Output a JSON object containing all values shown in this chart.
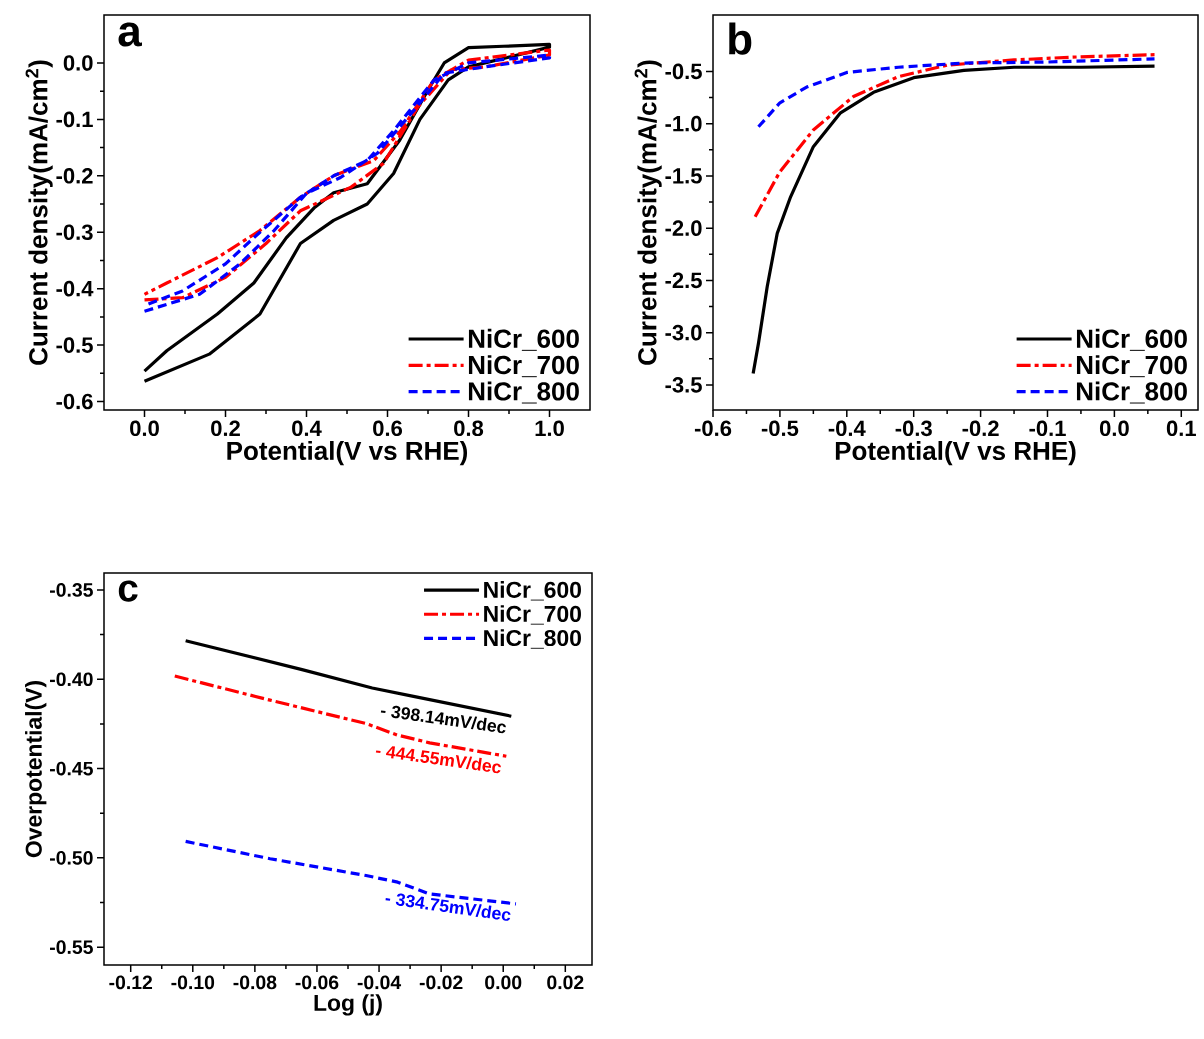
{
  "chart_data": [
    {
      "type": "line",
      "title": "a",
      "xlabel": "Potential(V vs RHE)",
      "ylabel": "Current density(mA/cm$^{2}$)",
      "xlim": [
        -0.1,
        1.1
      ],
      "ylim": [
        -0.615,
        0.085
      ],
      "xticks": [
        {
          "value": 0,
          "label": "0.0"
        },
        0.2,
        0.4,
        0.6,
        0.8,
        {
          "value": 1,
          "label": "1.0"
        }
      ],
      "yticks": [
        {
          "value": 0,
          "label": "0.0"
        },
        -0.1,
        -0.2,
        -0.3,
        -0.4,
        -0.5,
        -0.6
      ],
      "legend": "bottom right",
      "series": [
        {
          "name": "NiCr_600",
          "color": "#000000",
          "line_style": "solid",
          "x": [
            0.0,
            0.16,
            0.285,
            0.385,
            0.467,
            0.55,
            0.615,
            0.68,
            0.75,
            0.8,
            1.0,
            1.0,
            0.8,
            0.74,
            0.7,
            0.63,
            0.55,
            0.467,
            0.42,
            0.35,
            0.27,
            0.18,
            0.055,
            0.0
          ],
          "values": [
            -0.564,
            -0.516,
            -0.445,
            -0.32,
            -0.279,
            -0.25,
            -0.196,
            -0.1,
            -0.03,
            -0.007,
            0.028,
            0.033,
            0.027,
            0.0,
            -0.048,
            -0.137,
            -0.214,
            -0.23,
            -0.256,
            -0.31,
            -0.39,
            -0.445,
            -0.51,
            -0.546
          ]
        },
        {
          "name": "NiCr_700",
          "color": "#ff0000",
          "line_style": "dashdot",
          "x": [
            0.0,
            0.094,
            0.2,
            0.3,
            0.385,
            0.51,
            0.59,
            0.675,
            0.757,
            0.84,
            1.0,
            1.0,
            0.8,
            0.715,
            0.633,
            0.566,
            0.467,
            0.385,
            0.285,
            0.18,
            0.055,
            0.0
          ],
          "values": [
            -0.42,
            -0.416,
            -0.38,
            -0.32,
            -0.262,
            -0.22,
            -0.178,
            -0.078,
            -0.012,
            -0.007,
            0.014,
            0.023,
            0.005,
            -0.03,
            -0.12,
            -0.173,
            -0.2,
            -0.238,
            -0.297,
            -0.345,
            -0.39,
            -0.41
          ]
        },
        {
          "name": "NiCr_800",
          "color": "#0000ff",
          "line_style": "dashed",
          "x": [
            0.0,
            0.136,
            0.236,
            0.32,
            0.4,
            0.484,
            0.575,
            0.665,
            0.74,
            0.84,
            1.0,
            1.0,
            0.8,
            0.715,
            0.615,
            0.55,
            0.467,
            0.385,
            0.285,
            0.2,
            0.094,
            0.0
          ],
          "values": [
            -0.44,
            -0.41,
            -0.356,
            -0.297,
            -0.231,
            -0.203,
            -0.16,
            -0.084,
            -0.018,
            -0.007,
            0.009,
            0.014,
            0.0,
            -0.03,
            -0.12,
            -0.173,
            -0.2,
            -0.238,
            -0.3,
            -0.356,
            -0.404,
            -0.43
          ]
        }
      ]
    },
    {
      "type": "line",
      "title": "b",
      "xlabel": "Potential(V vs RHE)",
      "ylabel": "Current density(mA/cm$^{2}$)",
      "xlim": [
        -0.6,
        0.125
      ],
      "ylim": [
        -3.74,
        0.04
      ],
      "xticks": [
        -0.6,
        -0.5,
        -0.4,
        -0.3,
        -0.2,
        -0.1,
        {
          "value": 0,
          "label": "0.0"
        },
        0.1
      ],
      "yticks": [
        -0.5,
        {
          "value": -1,
          "label": "-1.0"
        },
        -1.5,
        {
          "value": -2,
          "label": "-2.0"
        },
        -2.5,
        {
          "value": -3,
          "label": "-3.0"
        },
        -3.5
      ],
      "legend": "bottom right",
      "series": [
        {
          "name": "NiCr_600",
          "color": "#000000",
          "line_style": "solid",
          "x": [
            -0.54,
            -0.532,
            -0.519,
            -0.504,
            -0.484,
            -0.45,
            -0.41,
            -0.36,
            -0.3,
            -0.225,
            -0.15,
            -0.05,
            0.06
          ],
          "values": [
            -3.39,
            -3.1,
            -2.56,
            -2.05,
            -1.7,
            -1.22,
            -0.9,
            -0.7,
            -0.56,
            -0.49,
            -0.46,
            -0.46,
            -0.45
          ]
        },
        {
          "name": "NiCr_700",
          "color": "#ff0000",
          "line_style": "dashdot",
          "x": [
            -0.537,
            -0.5,
            -0.45,
            -0.39,
            -0.323,
            -0.25,
            -0.15,
            -0.05,
            0.06
          ],
          "values": [
            -1.89,
            -1.46,
            -1.06,
            -0.74,
            -0.55,
            -0.44,
            -0.39,
            -0.36,
            -0.34
          ]
        },
        {
          "name": "NiCr_800",
          "color": "#0000ff",
          "line_style": "dashed",
          "x": [
            -0.532,
            -0.5,
            -0.46,
            -0.4,
            -0.323,
            -0.225,
            -0.1,
            0.06
          ],
          "values": [
            -1.03,
            -0.8,
            -0.65,
            -0.51,
            -0.46,
            -0.42,
            -0.41,
            -0.38
          ]
        }
      ]
    },
    {
      "type": "line",
      "title": "c",
      "xlabel": "Log (j)",
      "ylabel": "Overpotential(V)",
      "xlim": [
        -0.1286,
        0.0286
      ],
      "ylim": [
        -0.56,
        -0.3405
      ],
      "xticks": [
        -0.12,
        {
          "value": -0.1,
          "label": "-0.10"
        },
        -0.08,
        -0.06,
        -0.04,
        -0.02,
        {
          "value": 0,
          "label": "0.00"
        },
        0.02
      ],
      "yticks": [
        -0.35,
        {
          "value": -0.4,
          "label": "-0.40"
        },
        -0.45,
        {
          "value": -0.5,
          "label": "-0.50"
        },
        -0.55
      ],
      "legend": "top right",
      "annotations": [
        "- 398.14mV/dec",
        "- 444.55mV/dec",
        "- 334.75mV/dec"
      ],
      "series": [
        {
          "name": "NiCr_600",
          "color": "#000000",
          "line_style": "solid",
          "x": [
            -0.1023,
            -0.0648,
            -0.0422,
            -0.0289,
            0.0026
          ],
          "values": [
            -0.3784,
            -0.3946,
            -0.4049,
            -0.4096,
            -0.4207
          ]
        },
        {
          "name": "NiCr_700",
          "color": "#ff0000",
          "line_style": "dashdot",
          "x": [
            -0.1058,
            -0.0751,
            -0.0442,
            -0.034,
            -0.0237,
            0.001
          ],
          "values": [
            -0.3982,
            -0.4117,
            -0.4248,
            -0.4313,
            -0.4356,
            -0.4431
          ]
        },
        {
          "name": "NiCr_800",
          "color": "#0000ff",
          "line_style": "dashed",
          "x": [
            -0.1023,
            -0.0751,
            -0.0442,
            -0.034,
            -0.0237,
            0.0041
          ],
          "values": [
            -0.4908,
            -0.5005,
            -0.5099,
            -0.5136,
            -0.5202,
            -0.5258
          ]
        }
      ]
    }
  ]
}
